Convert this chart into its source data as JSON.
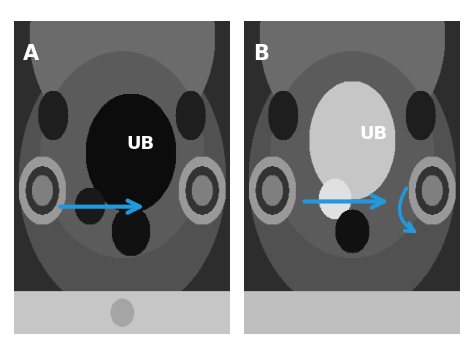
{
  "background_color": "#ffffff",
  "label_A": "A",
  "label_B": "B",
  "label_UB": "UB",
  "arrow_color": "#2299dd",
  "label_color": "#ffffff",
  "fig_width": 4.74,
  "fig_height": 3.55,
  "dpi": 100
}
